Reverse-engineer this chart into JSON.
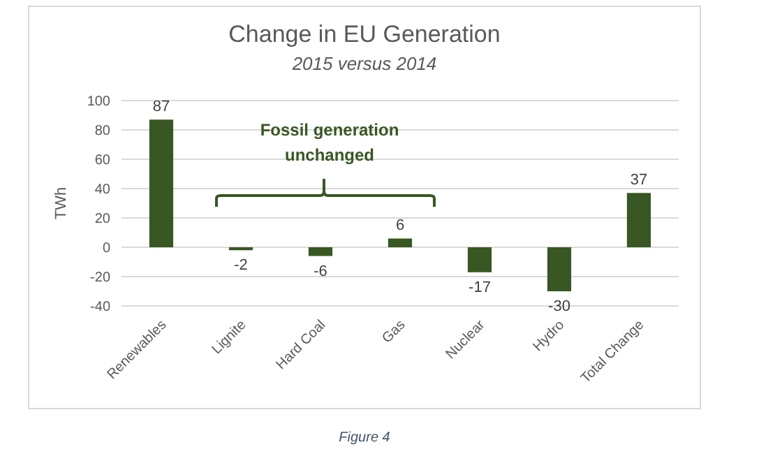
{
  "chart_data": {
    "type": "bar",
    "title": "Change in EU Generation",
    "subtitle": "2015 versus 2014",
    "ylabel": "TWh",
    "categories": [
      "Renewables",
      "Lignite",
      "Hard Coal",
      "Gas",
      "Nuclear",
      "Hydro",
      "Total Change"
    ],
    "values": [
      87,
      -2,
      -6,
      6,
      -17,
      -30,
      37
    ],
    "color": "#385723",
    "ylim": [
      -40,
      100
    ],
    "yticks": [
      -40,
      -20,
      0,
      20,
      40,
      60,
      80,
      100
    ],
    "grid": "y",
    "data_labels": true,
    "annotations": [
      "Fossil generation unchanged",
      "Figure 4"
    ]
  }
}
